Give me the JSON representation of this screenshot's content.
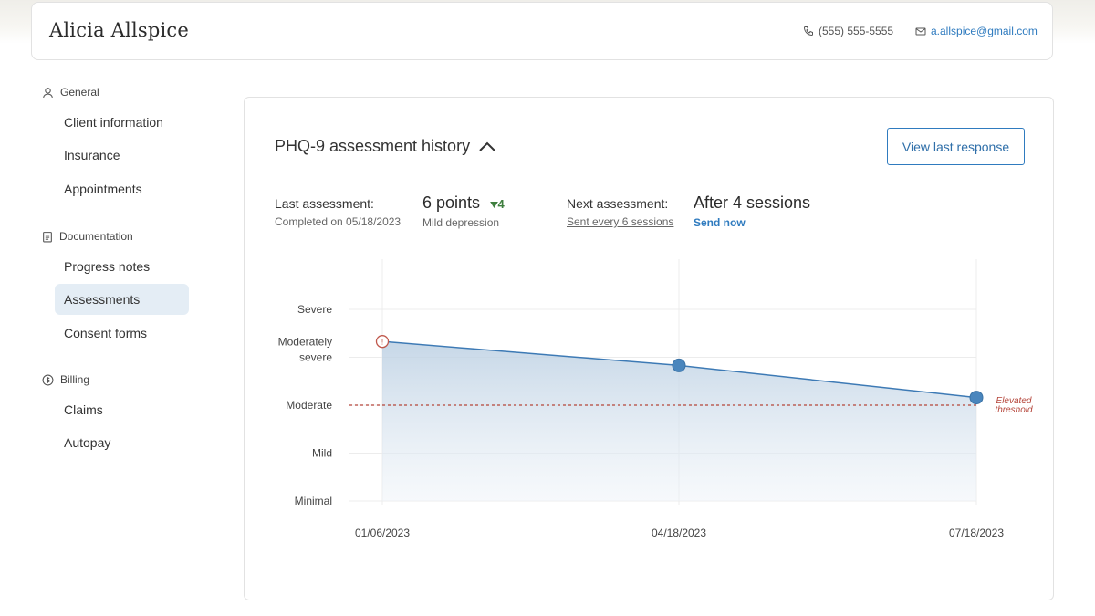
{
  "header": {
    "client_name": "Alicia Allspice",
    "phone": "(555) 555-5555",
    "email": "a.allspice@gmail.com"
  },
  "sidebar": {
    "sections": [
      {
        "title": "General",
        "icon": "person-icon",
        "items": [
          "Client information",
          "Insurance",
          "Appointments"
        ]
      },
      {
        "title": "Documentation",
        "icon": "clipboard-icon",
        "items": [
          "Progress notes",
          "Assessments",
          "Consent forms"
        ]
      },
      {
        "title": "Billing",
        "icon": "dollar-icon",
        "items": [
          "Claims",
          "Autopay"
        ]
      }
    ],
    "active_item": "Assessments"
  },
  "card": {
    "title": "PHQ-9 assessment history",
    "view_button": "View last response",
    "last_label": "Last assessment:",
    "last_sub": "Completed on 05/18/2023",
    "score": "6 points",
    "score_change": "4",
    "score_sub": "Mild depression",
    "next_label": "Next assessment:",
    "next_sub": "Sent every 6 sessions",
    "next_value": "After 4 sessions",
    "send_now": "Send now"
  },
  "colors": {
    "accent": "#2f7bbf",
    "line": "#3d7ab5",
    "threshold": "#b5453a",
    "delta": "#3f7f3f"
  },
  "chart_data": {
    "type": "area",
    "x": [
      "01/06/2023",
      "04/18/2023",
      "07/18/2023"
    ],
    "y_categories": [
      "Minimal",
      "Mild",
      "Moderate",
      "Moderately severe",
      "Severe"
    ],
    "values": [
      3.33,
      2.83,
      2.16
    ],
    "flagged_point": 0,
    "threshold": {
      "value": 2,
      "label": "Elevated threshold"
    }
  }
}
